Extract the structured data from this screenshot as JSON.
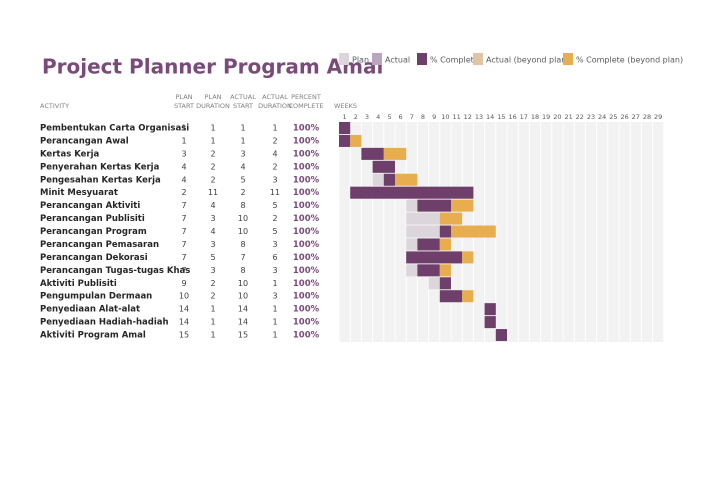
{
  "title": "Project Planner Program Amal",
  "legend": [
    "Plan",
    "Actual",
    "% Complete",
    "Actual (beyond plan)",
    "% Complete (beyond plan)"
  ],
  "headers": {
    "activity": "ACTIVITY",
    "plan_start": [
      "PLAN",
      "START"
    ],
    "plan_duration": [
      "PLAN",
      "DURATION"
    ],
    "actual_start": [
      "ACTUAL",
      "START"
    ],
    "actual_duration": [
      "ACTUAL",
      "DURATION"
    ],
    "percent": [
      "PERCENT",
      "COMPLETE"
    ],
    "weeks": "WEEKS"
  },
  "weeks": [
    1,
    2,
    3,
    4,
    5,
    6,
    7,
    8,
    9,
    10,
    11,
    12,
    13,
    14,
    15,
    16,
    17,
    18,
    19,
    20,
    21,
    22,
    23,
    24,
    25,
    26,
    27,
    28,
    29
  ],
  "rows": [
    [
      "Pembentukan Carta Organisasi",
      1,
      1,
      1,
      1,
      "100%"
    ],
    [
      "Perancangan Awal",
      1,
      1,
      1,
      2,
      "100%"
    ],
    [
      "Kertas Kerja",
      3,
      2,
      3,
      4,
      "100%"
    ],
    [
      "Penyerahan Kertas Kerja",
      4,
      2,
      4,
      2,
      "100%"
    ],
    [
      "Pengesahan Kertas Kerja",
      4,
      2,
      5,
      3,
      "100%"
    ],
    [
      "Minit Mesyuarat",
      2,
      11,
      2,
      11,
      "100%"
    ],
    [
      "Perancangan Aktiviti",
      7,
      4,
      8,
      5,
      "100%"
    ],
    [
      "Perancangan Publisiti",
      7,
      3,
      10,
      2,
      "100%"
    ],
    [
      "Perancangan Program",
      7,
      4,
      10,
      5,
      "100%"
    ],
    [
      "Perancangan Pemasaran",
      7,
      3,
      8,
      3,
      "100%"
    ],
    [
      "Perancangan Dekorasi",
      7,
      5,
      7,
      6,
      "100%"
    ],
    [
      "Perancangan Tugas-tugas Khas",
      7,
      3,
      8,
      3,
      "100%"
    ],
    [
      "Aktiviti Publisiti",
      9,
      2,
      10,
      1,
      "100%"
    ],
    [
      "Pengumpulan Dermaan",
      10,
      2,
      10,
      3,
      "100%"
    ],
    [
      "Penyediaan Alat-alat",
      14,
      1,
      14,
      1,
      "100%"
    ],
    [
      "Penyediaan Hadiah-hadiah",
      14,
      1,
      14,
      1,
      "100%"
    ],
    [
      "Aktiviti Program Amal",
      15,
      1,
      15,
      1,
      "100%"
    ]
  ]
}
